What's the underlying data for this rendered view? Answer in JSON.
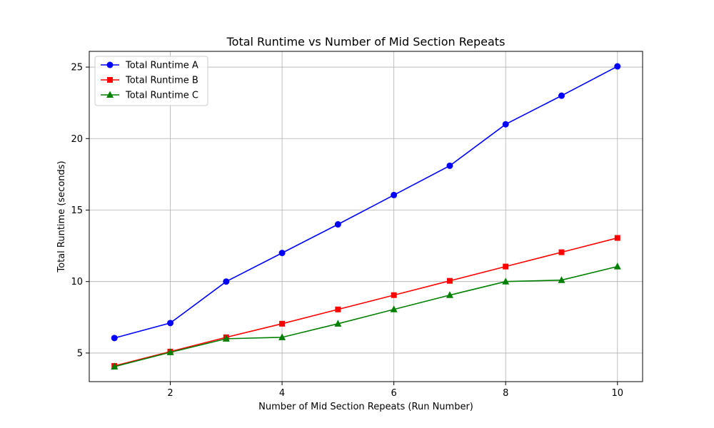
{
  "chart_data": {
    "type": "line",
    "title": "Total Runtime vs Number of Mid Section Repeats",
    "xlabel": "Number of Mid Section Repeats (Run Number)",
    "ylabel": "Total Runtime (seconds)",
    "x": [
      1,
      2,
      3,
      4,
      5,
      6,
      7,
      8,
      9,
      10
    ],
    "xlim": [
      0.55,
      10.45
    ],
    "ylim": [
      3.0,
      26.1
    ],
    "xticks": [
      2,
      4,
      6,
      8,
      10
    ],
    "yticks": [
      5,
      10,
      15,
      20,
      25
    ],
    "grid": true,
    "legend_position": "top-left",
    "series": [
      {
        "name": "Total Runtime A",
        "color": "#0000ff",
        "marker": "circle",
        "values": [
          6.05,
          7.1,
          10.0,
          12.0,
          14.0,
          16.05,
          18.1,
          21.0,
          23.0,
          25.05
        ]
      },
      {
        "name": "Total Runtime B",
        "color": "#ff0000",
        "marker": "square",
        "values": [
          4.1,
          5.1,
          6.1,
          7.05,
          8.05,
          9.05,
          10.05,
          11.05,
          12.05,
          13.05
        ]
      },
      {
        "name": "Total Runtime C",
        "color": "#008000",
        "marker": "triangle",
        "values": [
          4.05,
          5.05,
          6.0,
          6.1,
          7.05,
          8.05,
          9.05,
          10.0,
          10.1,
          11.05
        ]
      }
    ]
  }
}
